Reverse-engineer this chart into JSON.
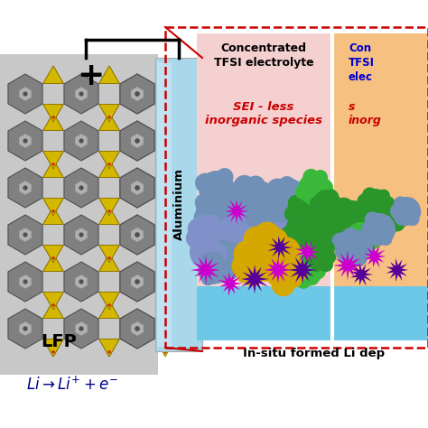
{
  "bg_color": "#ffffff",
  "lfp_label": "LFP",
  "aluminium_label": "Aluminium",
  "plus_sign": "+",
  "conc_label1": "Concentrated\nTFSI electrolyte",
  "sei_label": "SEI - less\ninorganic species",
  "insitu_label": "In-situ formed Li dep",
  "conc_label2_line1": "Con",
  "conc_label2_line2": "TFSI",
  "conc_label2_line3": "elec",
  "sei_label2_line1": "s",
  "sei_label2_line2": "inorg",
  "lfp_bg": "#c8c8c8",
  "aluminium_color": "#a8d8ea",
  "aluminium_light": "#d0ecf8",
  "dashed_box_color": "#cc0000",
  "left_box_bg": "#f5d0d0",
  "right_box_bg": "#f5c080",
  "li_layer_color": "#6dc8e8",
  "blob_blue": "#7090b8",
  "blob_blue2": "#8090c8",
  "blob_green": "#2a952a",
  "blob_green2": "#3ab83a",
  "blob_yellow": "#d4a800",
  "blob_magenta": "#cc00cc",
  "blob_purple": "#550099",
  "wire_color": "#000000",
  "lfp_label_color": "#000000",
  "aluminium_label_color": "#000000",
  "plus_color": "#000000",
  "equation_color": "#00008b",
  "conc_label1_color": "#000000",
  "sei_label_color": "#cc0000",
  "insitu_label_color": "#000000",
  "conc_label2_color": "#0000cc",
  "sei_label2_color": "#cc0000",
  "arrow_color": "#cc0000",
  "oct_color": "#808080",
  "oct_edge": "#505050",
  "tet_color": "#d4b800",
  "tet_edge": "#887000",
  "dot_color": "#cc3300"
}
